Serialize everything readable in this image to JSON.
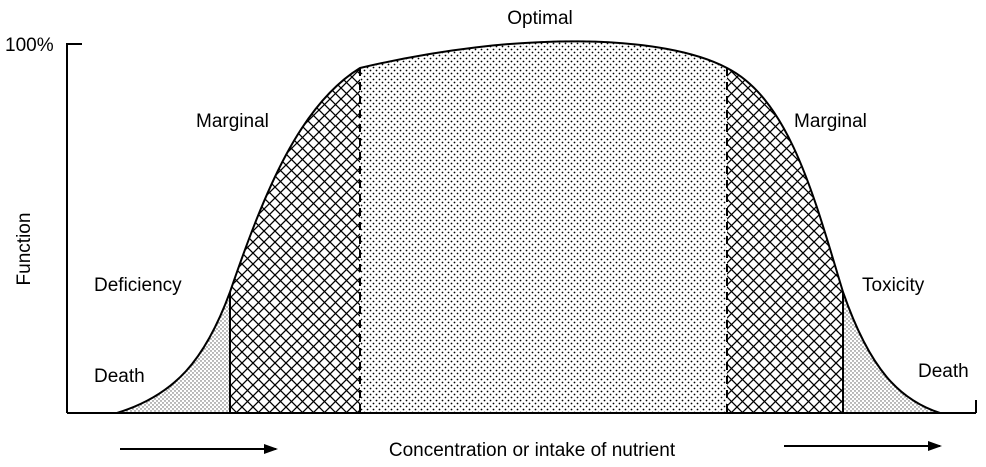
{
  "diagram": {
    "title": "Optimal",
    "y_axis": {
      "label": "Function",
      "tick_label": "100%"
    },
    "x_axis": {
      "label": "Concentration or intake of nutrient"
    },
    "zones": {
      "left": [
        {
          "id": "left-death",
          "label": "Death",
          "pattern": "sparse-dots"
        },
        {
          "id": "left-deficiency",
          "label": "Deficiency",
          "pattern": "crosshatch"
        },
        {
          "id": "left-marginal",
          "label": "Marginal",
          "pattern": "crosshatch"
        }
      ],
      "center": {
        "id": "optimal",
        "label": "Optimal",
        "pattern": "dense-dots"
      },
      "right": [
        {
          "id": "right-marginal",
          "label": "Marginal",
          "pattern": "crosshatch"
        },
        {
          "id": "right-toxicity",
          "label": "Toxicity",
          "pattern": "crosshatch"
        },
        {
          "id": "right-death",
          "label": "Death",
          "pattern": "sparse-dots"
        }
      ]
    },
    "arrows": [
      "increasing-left",
      "increasing-right"
    ]
  }
}
